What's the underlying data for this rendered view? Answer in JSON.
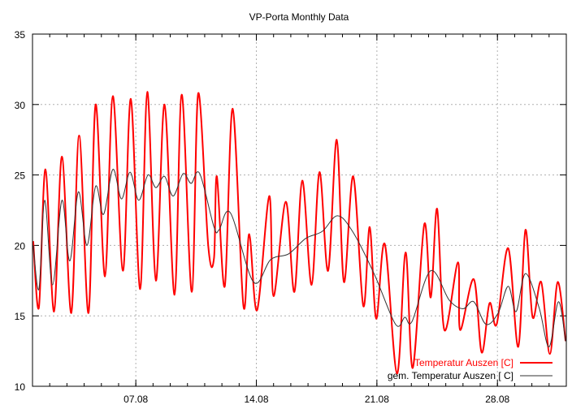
{
  "chart_data": {
    "type": "line",
    "title": "VP-Porta Monthly Data",
    "xlabel": "",
    "ylabel": "",
    "xlim": [
      "01.08 00:00",
      "01.09 00:00"
    ],
    "ylim": [
      10,
      35
    ],
    "x_ticks": [
      "07.08",
      "14.08",
      "21.08",
      "28.08"
    ],
    "y_ticks": [
      "10",
      "15",
      "20",
      "25",
      "30",
      "35"
    ],
    "grid": true,
    "legend_position": "bottom-right",
    "series": [
      {
        "name": "Temperatur Auszen [C]",
        "color": "#ff0000",
        "points": [
          [
            "01.08 01:00",
            20.3
          ],
          [
            "01.08 09:00",
            15.6
          ],
          [
            "01.08 18:00",
            25.4
          ],
          [
            "02.08 06:00",
            15.3
          ],
          [
            "02.08 17:00",
            26.3
          ],
          [
            "03.08 06:00",
            15.2
          ],
          [
            "03.08 17:00",
            27.8
          ],
          [
            "04.08 06:00",
            15.2
          ],
          [
            "04.08 16:00",
            30.0
          ],
          [
            "05.08 05:00",
            17.8
          ],
          [
            "05.08 16:00",
            30.6
          ],
          [
            "06.08 06:00",
            18.2
          ],
          [
            "06.08 17:00",
            30.4
          ],
          [
            "07.08 06:00",
            16.9
          ],
          [
            "07.08 16:00",
            30.9
          ],
          [
            "08.08 04:00",
            17.5
          ],
          [
            "08.08 16:00",
            30.0
          ],
          [
            "09.08 06:00",
            16.5
          ],
          [
            "09.08 16:00",
            30.7
          ],
          [
            "10.08 06:00",
            16.7
          ],
          [
            "10.08 15:00",
            30.8
          ],
          [
            "11.08 05:00",
            19.9
          ],
          [
            "11.08 13:00",
            19.1
          ],
          [
            "11.08 17:00",
            24.9
          ],
          [
            "12.08 04:00",
            17.1
          ],
          [
            "12.08 15:00",
            29.7
          ],
          [
            "13.08 06:00",
            15.7
          ],
          [
            "13.08 14:00",
            20.8
          ],
          [
            "14.08 01:00",
            15.4
          ],
          [
            "14.08 18:00",
            23.5
          ],
          [
            "15.08 00:00",
            16.4
          ],
          [
            "15.08 17:00",
            23.1
          ],
          [
            "16.08 05:00",
            16.7
          ],
          [
            "16.08 16:00",
            24.6
          ],
          [
            "17.08 05:00",
            17.2
          ],
          [
            "17.08 16:00",
            25.2
          ],
          [
            "18.08 04:00",
            18.2
          ],
          [
            "18.08 16:00",
            27.5
          ],
          [
            "19.08 02:00",
            17.4
          ],
          [
            "19.08 15:00",
            24.9
          ],
          [
            "20.08 05:00",
            15.7
          ],
          [
            "20.08 14:00",
            21.3
          ],
          [
            "20.08 23:00",
            14.8
          ],
          [
            "21.08 11:00",
            20.1
          ],
          [
            "22.08 04:00",
            10.9
          ],
          [
            "22.08 16:00",
            19.5
          ],
          [
            "23.08 02:00",
            11.3
          ],
          [
            "23.08 18:00",
            21.5
          ],
          [
            "24.08 03:00",
            16.3
          ],
          [
            "24.08 12:00",
            22.6
          ],
          [
            "24.08 22:00",
            14.0
          ],
          [
            "25.08 17:00",
            18.8
          ],
          [
            "25.08 20:00",
            14.0
          ],
          [
            "26.08 15:00",
            17.6
          ],
          [
            "27.08 02:00",
            12.4
          ],
          [
            "27.08 13:00",
            15.9
          ],
          [
            "27.08 23:00",
            14.4
          ],
          [
            "28.08 15:00",
            19.8
          ],
          [
            "29.08 05:00",
            12.8
          ],
          [
            "29.08 15:00",
            21.1
          ],
          [
            "30.08 01:00",
            14.9
          ],
          [
            "30.08 13:00",
            17.4
          ],
          [
            "31.08 01:00",
            12.3
          ],
          [
            "31.08 12:00",
            17.4
          ],
          [
            "31.08 23:00",
            13.2
          ]
        ]
      },
      {
        "name": "gem. Temperatur Auszen [ C]",
        "color": "#000000",
        "points": [
          [
            "01.08 01:00",
            20.0
          ],
          [
            "01.08 09:00",
            16.9
          ],
          [
            "01.08 17:00",
            23.2
          ],
          [
            "02.08 04:00",
            17.2
          ],
          [
            "02.08 17:00",
            23.2
          ],
          [
            "03.08 04:00",
            18.9
          ],
          [
            "03.08 16:00",
            23.8
          ],
          [
            "04.08 04:00",
            20.0
          ],
          [
            "04.08 16:00",
            24.2
          ],
          [
            "05.08 03:00",
            22.2
          ],
          [
            "05.08 16:00",
            25.4
          ],
          [
            "06.08 04:00",
            23.3
          ],
          [
            "06.08 16:00",
            25.2
          ],
          [
            "07.08 04:00",
            23.2
          ],
          [
            "07.08 17:00",
            25.0
          ],
          [
            "08.08 04:00",
            24.1
          ],
          [
            "08.08 16:00",
            24.9
          ],
          [
            "09.08 04:00",
            23.5
          ],
          [
            "09.08 18:00",
            25.1
          ],
          [
            "10.08 05:00",
            24.4
          ],
          [
            "10.08 17:00",
            25.1
          ],
          [
            "11.08 13:00",
            21.3
          ],
          [
            "11.08 20:00",
            21.1
          ],
          [
            "12.08 12:00",
            22.3
          ],
          [
            "13.08 20:00",
            17.4
          ],
          [
            "14.08 20:00",
            19.0
          ],
          [
            "15.08 21:00",
            19.4
          ],
          [
            "16.08 21:00",
            20.5
          ],
          [
            "17.08 20:00",
            21.0
          ],
          [
            "18.08 17:00",
            22.1
          ],
          [
            "19.08 14:00",
            21.0
          ],
          [
            "20.08 20:00",
            18.0
          ],
          [
            "22.08 02:00",
            14.4
          ],
          [
            "22.08 15:00",
            14.9
          ],
          [
            "23.08 01:00",
            14.6
          ],
          [
            "24.08 03:00",
            18.2
          ],
          [
            "25.08 05:00",
            16.1
          ],
          [
            "26.08 00:00",
            15.5
          ],
          [
            "26.08 15:00",
            16.0
          ],
          [
            "27.08 08:00",
            14.4
          ],
          [
            "28.08 01:00",
            15.2
          ],
          [
            "28.08 15:00",
            17.1
          ],
          [
            "29.08 02:00",
            15.3
          ],
          [
            "29.08 15:00",
            18.0
          ],
          [
            "30.08 10:00",
            15.6
          ],
          [
            "31.08 00:00",
            12.8
          ],
          [
            "31.08 13:00",
            16.0
          ],
          [
            "31.08 23:00",
            13.2
          ]
        ]
      }
    ]
  }
}
